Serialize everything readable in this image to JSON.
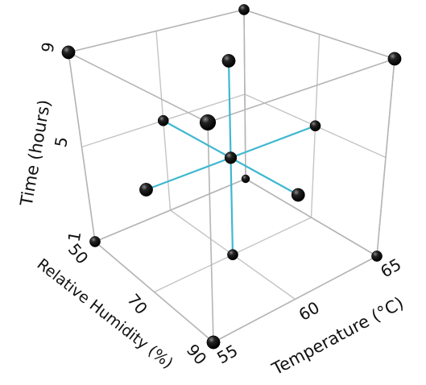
{
  "chart_data": {
    "type": "scatter3d",
    "xlabel": "Temperature (°C)",
    "ylabel": "Relative Humidity (%)",
    "zlabel": "Time (hours)",
    "xlim": [
      55,
      65
    ],
    "ylim": [
      50,
      90
    ],
    "zlim": [
      1,
      9
    ],
    "xticks": [
      55,
      60,
      65
    ],
    "yticks": [
      50,
      70,
      90
    ],
    "zticks": [
      1,
      5,
      9
    ],
    "x": [
      55,
      55,
      65,
      65,
      55,
      55,
      65,
      65,
      60,
      55,
      65,
      60,
      60,
      60,
      60
    ],
    "y": [
      50,
      90,
      90,
      50,
      50,
      90,
      90,
      50,
      70,
      70,
      70,
      50,
      90,
      70,
      70
    ],
    "z": [
      1,
      1,
      1,
      1,
      9,
      9,
      9,
      9,
      5,
      5,
      5,
      5,
      5,
      1,
      9
    ],
    "grid": true,
    "color": "#000000",
    "line_color": "#3fb8d0"
  }
}
